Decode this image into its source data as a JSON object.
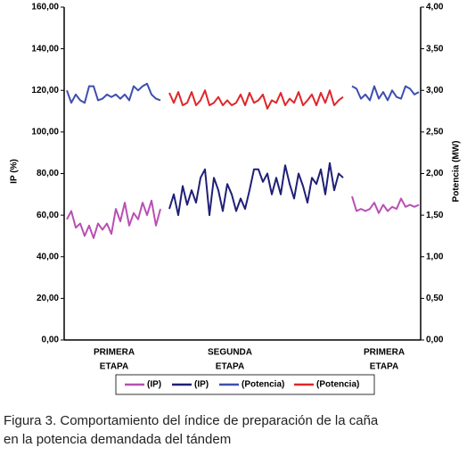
{
  "chart_data": {
    "type": "line",
    "y_label": "IP (%)",
    "y2_label": "Potencia (MW)",
    "x_labels": [
      {
        "line1": "PRIMERA",
        "line2": "ETAPA"
      },
      {
        "line1": "SEGUNDA",
        "line2": "ETAPA"
      },
      {
        "line1": "PRIMERA",
        "line2": "ETAPA"
      }
    ],
    "ylim": [
      0,
      160
    ],
    "yticks": [
      {
        "value": 0,
        "label": "0,00"
      },
      {
        "value": 20,
        "label": "20,00"
      },
      {
        "value": 40,
        "label": "40,00"
      },
      {
        "value": 60,
        "label": "60,00"
      },
      {
        "value": 80,
        "label": "80,00"
      },
      {
        "value": 100,
        "label": "100,00"
      },
      {
        "value": 120,
        "label": "120,00"
      },
      {
        "value": 140,
        "label": "140,00"
      },
      {
        "value": 160,
        "label": "160,00"
      }
    ],
    "y2lim": [
      0,
      4
    ],
    "y2ticks": [
      {
        "value": 0,
        "label": "0,00"
      },
      {
        "value": 0.5,
        "label": "0,50"
      },
      {
        "value": 1,
        "label": "1,00"
      },
      {
        "value": 1.5,
        "label": "1,50"
      },
      {
        "value": 2,
        "label": "2,00"
      },
      {
        "value": 2.5,
        "label": "2,50"
      },
      {
        "value": 3,
        "label": "3,00"
      },
      {
        "value": 3.5,
        "label": "3,50"
      },
      {
        "value": 4,
        "label": "4,00"
      }
    ],
    "series": [
      {
        "name": "(IP)",
        "color": "#b94fb5",
        "values": [
          58,
          62,
          54,
          56,
          50,
          55,
          49,
          56,
          53,
          56,
          51,
          63,
          57,
          66,
          55,
          61,
          58,
          66,
          60,
          67,
          55,
          63,
          null,
          null,
          null,
          null,
          null,
          null,
          null,
          null,
          null,
          null,
          null,
          null,
          null,
          null,
          null,
          null,
          null,
          null,
          null,
          null,
          null,
          null,
          null,
          null,
          null,
          null,
          null,
          null,
          null,
          null,
          null,
          null,
          null,
          null,
          null,
          null,
          null,
          null,
          null,
          null,
          null,
          null,
          69,
          62,
          63,
          62,
          63,
          66,
          61,
          65,
          62,
          64,
          63,
          68,
          64,
          65,
          64,
          65
        ]
      },
      {
        "name": "(IP)",
        "color": "#1f1f78",
        "values": [
          null,
          null,
          null,
          null,
          null,
          null,
          null,
          null,
          null,
          null,
          null,
          null,
          null,
          null,
          null,
          null,
          null,
          null,
          null,
          null,
          null,
          null,
          null,
          63,
          70,
          60,
          74,
          65,
          72,
          66,
          78,
          82,
          60,
          78,
          72,
          62,
          75,
          70,
          62,
          68,
          63,
          72,
          82,
          82,
          76,
          80,
          70,
          78,
          70,
          84,
          75,
          68,
          80,
          74,
          66,
          78,
          75,
          82,
          70,
          85,
          72,
          80,
          78,
          null,
          null,
          null,
          null,
          null,
          null,
          null,
          null,
          null,
          null,
          null,
          null,
          null,
          null,
          null,
          null,
          null
        ]
      },
      {
        "name": "(Potencia)",
        "color": "#3d4fb0",
        "axis": "y2",
        "values": [
          3.0,
          2.85,
          2.95,
          2.88,
          2.85,
          3.05,
          3.05,
          2.88,
          2.9,
          2.95,
          2.92,
          2.95,
          2.9,
          2.95,
          2.88,
          3.05,
          3.0,
          3.05,
          3.08,
          2.95,
          2.9,
          2.88,
          null,
          null,
          null,
          null,
          null,
          null,
          null,
          null,
          null,
          null,
          null,
          null,
          null,
          null,
          null,
          null,
          null,
          null,
          null,
          null,
          null,
          null,
          null,
          null,
          null,
          null,
          null,
          null,
          null,
          null,
          null,
          null,
          null,
          null,
          null,
          null,
          null,
          null,
          null,
          null,
          null,
          null,
          3.05,
          3.02,
          2.9,
          2.95,
          2.88,
          3.05,
          2.9,
          2.98,
          2.88,
          3.0,
          2.92,
          2.9,
          3.05,
          3.02,
          2.95,
          2.98
        ]
      },
      {
        "name": "(Potencia)",
        "color": "#e0262b",
        "axis": "y2",
        "values": [
          null,
          null,
          null,
          null,
          null,
          null,
          null,
          null,
          null,
          null,
          null,
          null,
          null,
          null,
          null,
          null,
          null,
          null,
          null,
          null,
          null,
          null,
          null,
          2.97,
          2.85,
          2.98,
          2.82,
          2.85,
          2.98,
          2.82,
          2.88,
          3.0,
          2.82,
          2.85,
          2.92,
          2.82,
          2.88,
          2.82,
          2.85,
          2.95,
          2.82,
          2.97,
          2.85,
          2.88,
          2.95,
          2.78,
          2.88,
          2.85,
          2.97,
          2.82,
          2.9,
          2.85,
          2.98,
          2.82,
          2.88,
          2.95,
          2.82,
          2.97,
          2.85,
          3.0,
          2.82,
          2.88,
          2.92,
          null,
          null,
          null,
          null,
          null,
          null,
          null,
          null,
          null,
          null,
          null,
          null,
          null,
          null,
          null,
          null,
          null
        ]
      }
    ]
  },
  "caption": {
    "line1": "Figura 3. Comportamiento del índice de preparación de la caña",
    "line2": "en la potencia demandada del tándem"
  }
}
